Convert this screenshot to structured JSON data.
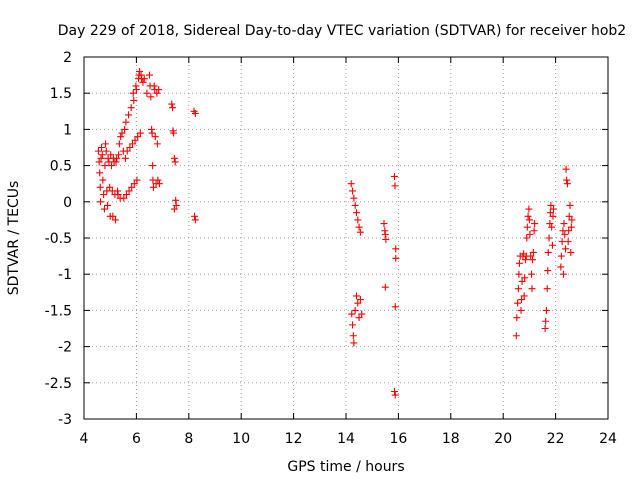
{
  "chart_data": {
    "type": "scatter",
    "title": "Day 229 of 2018, Sidereal Day-to-day VTEC variation (SDTVAR) for receiver hob2",
    "xlabel": "GPS time / hours",
    "ylabel": "SDTVAR / TECUs",
    "xlim": [
      4,
      24
    ],
    "ylim": [
      -3,
      2
    ],
    "x_ticks": [
      4,
      6,
      8,
      10,
      12,
      14,
      16,
      18,
      20,
      22,
      24
    ],
    "y_ticks": [
      -3,
      -2.5,
      -2,
      -1.5,
      -1,
      -0.5,
      0,
      0.5,
      1,
      1.5,
      2
    ],
    "x_tick_labels": [
      "4",
      "6",
      "8",
      "10",
      "12",
      "14",
      "16",
      "18",
      "20",
      "22",
      "24"
    ],
    "y_tick_labels": [
      "-3",
      "-2.5",
      "-2",
      "-1.5",
      "-1",
      "-0.5",
      "0",
      "0.5",
      "1",
      "1.5",
      "2"
    ],
    "grid": true,
    "marker": "plus",
    "color": "#ff0000",
    "series": [
      {
        "name": "SDTVAR",
        "points": [
          [
            4.55,
            0.7
          ],
          [
            4.58,
            0.55
          ],
          [
            4.6,
            0.4
          ],
          [
            4.62,
            0.2
          ],
          [
            4.63,
            0.0
          ],
          [
            4.65,
            0.6
          ],
          [
            4.67,
            0.75
          ],
          [
            4.7,
            0.65
          ],
          [
            4.72,
            0.3
          ],
          [
            4.75,
            0.1
          ],
          [
            4.78,
            -0.1
          ],
          [
            4.8,
            0.5
          ],
          [
            4.82,
            0.8
          ],
          [
            4.85,
            0.7
          ],
          [
            4.87,
            0.15
          ],
          [
            4.9,
            -0.05
          ],
          [
            4.92,
            0.6
          ],
          [
            4.95,
            0.55
          ],
          [
            4.98,
            0.2
          ],
          [
            5.0,
            -0.2
          ],
          [
            5.02,
            0.65
          ],
          [
            5.05,
            0.5
          ],
          [
            5.08,
            0.15
          ],
          [
            5.1,
            -0.2
          ],
          [
            5.12,
            0.6
          ],
          [
            5.15,
            0.55
          ],
          [
            5.18,
            0.1
          ],
          [
            5.2,
            -0.25
          ],
          [
            5.22,
            0.55
          ],
          [
            5.25,
            0.6
          ],
          [
            5.28,
            0.15
          ],
          [
            5.3,
            0.1
          ],
          [
            5.32,
            0.65
          ],
          [
            5.35,
            0.8
          ],
          [
            5.38,
            0.05
          ],
          [
            5.4,
            0.9
          ],
          [
            5.45,
            0.95
          ],
          [
            5.5,
            0.7
          ],
          [
            5.52,
            0.05
          ],
          [
            5.55,
            1.0
          ],
          [
            5.58,
            0.6
          ],
          [
            5.6,
            1.1
          ],
          [
            5.62,
            0.1
          ],
          [
            5.65,
            0.7
          ],
          [
            5.7,
            1.2
          ],
          [
            5.72,
            0.15
          ],
          [
            5.75,
            0.75
          ],
          [
            5.8,
            1.3
          ],
          [
            5.82,
            0.2
          ],
          [
            5.85,
            0.8
          ],
          [
            5.88,
            1.5
          ],
          [
            5.9,
            1.4
          ],
          [
            5.92,
            0.25
          ],
          [
            5.95,
            0.85
          ],
          [
            5.98,
            1.6
          ],
          [
            6.0,
            1.55
          ],
          [
            6.02,
            0.3
          ],
          [
            6.05,
            0.9
          ],
          [
            6.08,
            1.7
          ],
          [
            6.1,
            1.75
          ],
          [
            6.12,
            1.8
          ],
          [
            6.15,
            0.95
          ],
          [
            6.18,
            1.75
          ],
          [
            6.2,
            1.7
          ],
          [
            6.25,
            1.65
          ],
          [
            6.3,
            1.7
          ],
          [
            6.4,
            1.5
          ],
          [
            6.5,
            1.75
          ],
          [
            6.52,
            1.6
          ],
          [
            6.55,
            1.45
          ],
          [
            6.58,
            1.0
          ],
          [
            6.6,
            0.95
          ],
          [
            6.62,
            0.5
          ],
          [
            6.63,
            0.3
          ],
          [
            6.65,
            0.2
          ],
          [
            6.68,
            1.6
          ],
          [
            6.7,
            1.55
          ],
          [
            6.72,
            0.9
          ],
          [
            6.75,
            0.25
          ],
          [
            6.78,
            1.5
          ],
          [
            6.8,
            0.8
          ],
          [
            6.82,
            0.3
          ],
          [
            6.85,
            1.55
          ],
          [
            6.88,
            0.25
          ],
          [
            7.35,
            1.35
          ],
          [
            7.38,
            1.3
          ],
          [
            7.4,
            0.98
          ],
          [
            7.42,
            0.95
          ],
          [
            7.45,
            0.6
          ],
          [
            7.48,
            0.55
          ],
          [
            7.5,
            0.02
          ],
          [
            7.52,
            -0.05
          ],
          [
            7.45,
            -0.1
          ],
          [
            8.2,
            1.25
          ],
          [
            8.25,
            1.22
          ],
          [
            8.22,
            -0.2
          ],
          [
            8.25,
            -0.25
          ],
          [
            14.2,
            0.25
          ],
          [
            14.25,
            0.15
          ],
          [
            14.3,
            0.05
          ],
          [
            14.35,
            -0.05
          ],
          [
            14.4,
            -0.15
          ],
          [
            14.45,
            -0.25
          ],
          [
            14.5,
            -0.35
          ],
          [
            14.55,
            -0.42
          ],
          [
            14.22,
            -1.55
          ],
          [
            14.25,
            -1.7
          ],
          [
            14.28,
            -1.85
          ],
          [
            14.3,
            -1.95
          ],
          [
            14.35,
            -1.5
          ],
          [
            14.4,
            -1.3
          ],
          [
            14.45,
            -1.4
          ],
          [
            14.5,
            -1.6
          ],
          [
            14.55,
            -1.35
          ],
          [
            14.6,
            -1.55
          ],
          [
            15.45,
            -0.3
          ],
          [
            15.48,
            -0.4
          ],
          [
            15.5,
            -0.45
          ],
          [
            15.52,
            -0.52
          ],
          [
            15.5,
            -1.18
          ],
          [
            15.85,
            0.35
          ],
          [
            15.87,
            0.22
          ],
          [
            15.9,
            -0.65
          ],
          [
            15.9,
            -0.78
          ],
          [
            15.88,
            -1.45
          ],
          [
            15.85,
            -2.62
          ],
          [
            15.88,
            -2.67
          ],
          [
            20.5,
            -1.85
          ],
          [
            20.52,
            -1.6
          ],
          [
            20.55,
            -1.4
          ],
          [
            20.58,
            -1.2
          ],
          [
            20.6,
            -1.0
          ],
          [
            20.62,
            -0.85
          ],
          [
            20.65,
            -0.75
          ],
          [
            20.68,
            -1.5
          ],
          [
            20.7,
            -1.35
          ],
          [
            20.72,
            -1.1
          ],
          [
            20.75,
            -0.75
          ],
          [
            20.78,
            -0.72
          ],
          [
            20.8,
            -1.3
          ],
          [
            20.82,
            -1.05
          ],
          [
            20.85,
            -0.8
          ],
          [
            20.88,
            -0.75
          ],
          [
            20.9,
            -0.5
          ],
          [
            20.92,
            -0.35
          ],
          [
            20.95,
            -0.2
          ],
          [
            20.98,
            -0.1
          ],
          [
            21.0,
            -0.25
          ],
          [
            21.02,
            -0.45
          ],
          [
            21.05,
            -0.75
          ],
          [
            21.08,
            -1.0
          ],
          [
            21.1,
            -1.2
          ],
          [
            21.12,
            -0.8
          ],
          [
            21.15,
            -0.7
          ],
          [
            21.18,
            -0.4
          ],
          [
            21.2,
            -0.3
          ],
          [
            21.6,
            -1.75
          ],
          [
            21.62,
            -1.65
          ],
          [
            21.65,
            -1.5
          ],
          [
            21.68,
            -1.2
          ],
          [
            21.7,
            -0.95
          ],
          [
            21.72,
            -0.7
          ],
          [
            21.75,
            -0.5
          ],
          [
            21.78,
            -0.3
          ],
          [
            21.8,
            -0.15
          ],
          [
            21.82,
            -0.05
          ],
          [
            21.85,
            -0.35
          ],
          [
            21.88,
            -0.6
          ],
          [
            21.9,
            -0.2
          ],
          [
            21.92,
            -0.1
          ],
          [
            22.2,
            -0.9
          ],
          [
            22.22,
            -0.75
          ],
          [
            22.25,
            -0.55
          ],
          [
            22.28,
            -0.4
          ],
          [
            22.3,
            -1.0
          ],
          [
            22.32,
            -0.3
          ],
          [
            22.35,
            -0.45
          ],
          [
            22.38,
            -0.65
          ],
          [
            22.4,
            0.45
          ],
          [
            22.42,
            0.3
          ],
          [
            22.45,
            0.25
          ],
          [
            22.48,
            -0.55
          ],
          [
            22.5,
            -0.4
          ],
          [
            22.52,
            -0.2
          ],
          [
            22.55,
            -0.05
          ],
          [
            22.58,
            -0.7
          ],
          [
            22.6,
            -0.35
          ],
          [
            22.62,
            -0.25
          ]
        ]
      }
    ]
  }
}
